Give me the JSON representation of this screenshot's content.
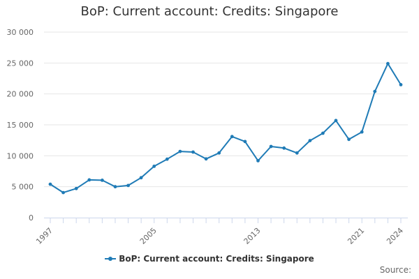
{
  "chart_data": {
    "type": "line",
    "title": "BoP: Current account: Credits: Singapore",
    "xlabel": "",
    "ylabel": "",
    "x": [
      1997,
      1998,
      1999,
      2000,
      2001,
      2002,
      2003,
      2004,
      2005,
      2006,
      2007,
      2008,
      2009,
      2010,
      2011,
      2012,
      2013,
      2014,
      2015,
      2016,
      2017,
      2018,
      2019,
      2020,
      2021,
      2022,
      2023,
      2024
    ],
    "series": [
      {
        "name": "BoP: Current account: Credits: Singapore",
        "values": [
          5400,
          4050,
          4700,
          6100,
          6050,
          5000,
          5200,
          6450,
          8300,
          9450,
          10700,
          10600,
          9500,
          10450,
          13100,
          12300,
          9200,
          11500,
          11250,
          10450,
          12450,
          13650,
          15700,
          12650,
          13850,
          20400,
          24900,
          21500
        ]
      }
    ],
    "x_tick_labels": [
      "1997",
      "2005",
      "2013",
      "2021",
      "2024"
    ],
    "y_tick_labels": [
      "0",
      "5 000",
      "10 000",
      "15 000",
      "20 000",
      "25 000",
      "30 000"
    ],
    "ylim": [
      0,
      30000
    ],
    "grid": "horizontal",
    "legend_position": "bottom",
    "color": "#1f7bb6"
  },
  "credits": "Source:"
}
